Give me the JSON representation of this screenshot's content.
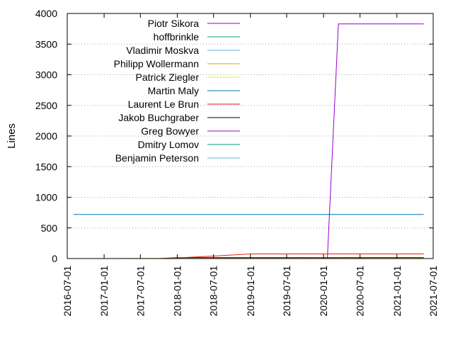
{
  "chart_data": {
    "type": "line",
    "ylabel": "Lines",
    "xlabel": "",
    "title": "",
    "ylim": [
      0,
      4000
    ],
    "xlim": [
      "2016-07-01",
      "2021-07-01"
    ],
    "y_ticks": [
      0,
      500,
      1000,
      1500,
      2000,
      2500,
      3000,
      3500,
      4000
    ],
    "x_ticks": [
      "2016-07-01",
      "2017-01-01",
      "2017-07-01",
      "2018-01-01",
      "2018-07-01",
      "2019-01-01",
      "2019-07-01",
      "2020-01-01",
      "2020-07-01",
      "2021-01-01",
      "2021-07-01"
    ],
    "grid": true,
    "legend_position": "top-left",
    "series": [
      {
        "name": "Piotr Sikora",
        "color": "#9400d3",
        "points": [
          [
            "2016-08-01",
            0
          ],
          [
            "2020-01-20",
            0
          ],
          [
            "2020-03-15",
            3830
          ],
          [
            "2021-05-15",
            3830
          ]
        ]
      },
      {
        "name": "hoffbrinkle",
        "color": "#009e73",
        "points": [
          [
            "2016-08-01",
            0
          ],
          [
            "2021-05-15",
            0
          ]
        ]
      },
      {
        "name": "Vladimir Moskva",
        "color": "#56b4e9",
        "points": [
          [
            "2016-08-01",
            0
          ],
          [
            "2021-05-15",
            0
          ]
        ]
      },
      {
        "name": "Philipp Wollermann",
        "color": "#e69f00",
        "points": [
          [
            "2016-08-01",
            0
          ],
          [
            "2018-01-01",
            2
          ],
          [
            "2021-05-15",
            5
          ]
        ]
      },
      {
        "name": "Patrick Ziegler",
        "color": "#f0e442",
        "points": [
          [
            "2016-08-01",
            0
          ],
          [
            "2021-05-15",
            0
          ]
        ]
      },
      {
        "name": "Martin Maly",
        "color": "#0072b2",
        "points": [
          [
            "2016-08-01",
            720
          ],
          [
            "2021-05-15",
            720
          ]
        ]
      },
      {
        "name": "Laurent Le Brun",
        "color": "#e51e10",
        "points": [
          [
            "2017-11-01",
            0
          ],
          [
            "2018-01-01",
            10
          ],
          [
            "2018-07-01",
            40
          ],
          [
            "2019-01-01",
            75
          ],
          [
            "2021-05-15",
            75
          ]
        ]
      },
      {
        "name": "Jakob Buchgraber",
        "color": "#000000",
        "points": [
          [
            "2017-10-01",
            0
          ],
          [
            "2018-01-01",
            15
          ],
          [
            "2021-05-15",
            15
          ]
        ]
      },
      {
        "name": "Greg Bowyer",
        "color": "#9400d3",
        "points": [
          [
            "2016-08-01",
            0
          ],
          [
            "2021-05-15",
            0
          ]
        ]
      },
      {
        "name": "Dmitry Lomov",
        "color": "#009e73",
        "points": [
          [
            "2016-08-01",
            0
          ],
          [
            "2021-05-15",
            0
          ]
        ]
      },
      {
        "name": "Benjamin Peterson",
        "color": "#56b4e9",
        "points": [
          [
            "2016-08-01",
            0
          ],
          [
            "2021-05-15",
            0
          ]
        ]
      }
    ]
  }
}
